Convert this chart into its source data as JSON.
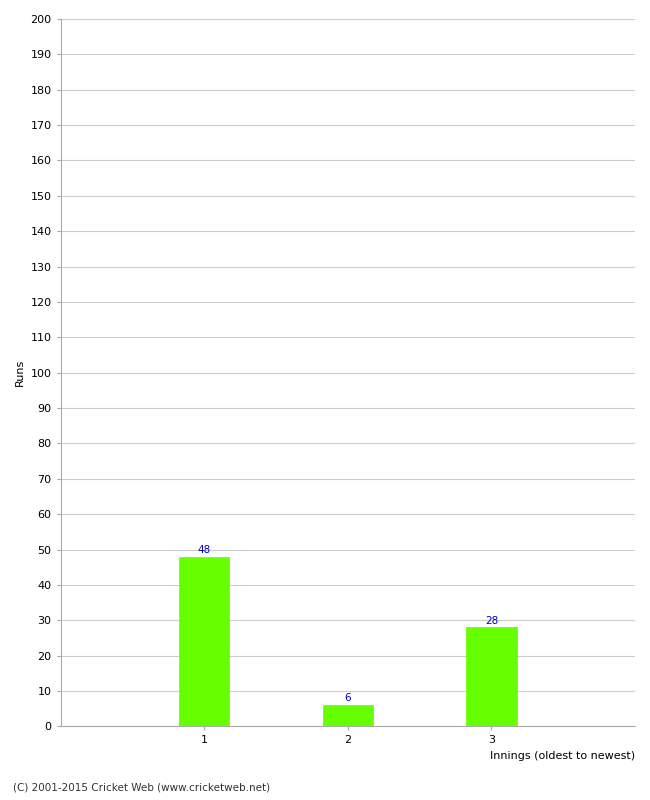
{
  "categories": [
    "1",
    "2",
    "3"
  ],
  "values": [
    48,
    6,
    28
  ],
  "bar_color": "#66ff00",
  "bar_edge_color": "#66ff00",
  "xlabel": "Innings (oldest to newest)",
  "ylabel": "Runs",
  "ylim": [
    0,
    200
  ],
  "yticks": [
    0,
    10,
    20,
    30,
    40,
    50,
    60,
    70,
    80,
    90,
    100,
    110,
    120,
    130,
    140,
    150,
    160,
    170,
    180,
    190,
    200
  ],
  "label_color": "#0000cc",
  "label_fontsize": 7.5,
  "axis_fontsize": 8,
  "tick_fontsize": 8,
  "footer_text": "(C) 2001-2015 Cricket Web (www.cricketweb.net)",
  "footer_fontsize": 7.5,
  "background_color": "#ffffff",
  "grid_color": "#cccccc"
}
